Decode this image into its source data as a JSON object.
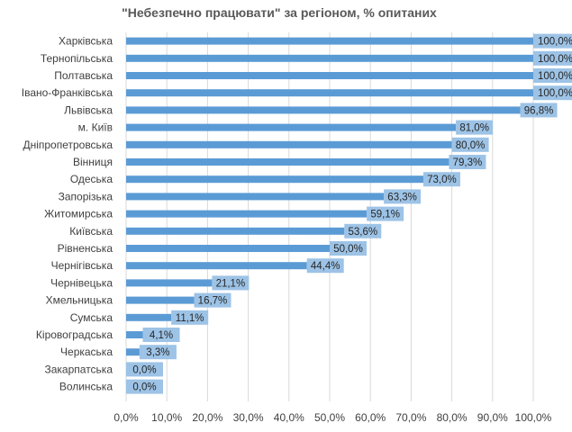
{
  "chart_data": {
    "type": "bar",
    "orientation": "horizontal",
    "title": "\"Небезпечно працювати\" за регіоном, % опитаних",
    "categories": [
      "Харківська",
      "Тернопільська",
      "Полтавська",
      "Івано-Франківська",
      "Львівська",
      "м. Київ",
      "Дніпропетровська",
      "Вінниця",
      "Одеська",
      "Запорізька",
      "Житомирська",
      "Київська",
      "Рівненська",
      "Чернігівська",
      "Чернівецька",
      "Хмельницька",
      "Сумська",
      "Кіровоградська",
      "Черкаська",
      "Закарпатська",
      "Волинська"
    ],
    "values": [
      100.0,
      100.0,
      100.0,
      100.0,
      96.8,
      81.0,
      80.0,
      79.3,
      73.0,
      63.3,
      59.1,
      53.6,
      50.0,
      44.4,
      21.1,
      16.7,
      11.1,
      4.1,
      3.3,
      0.0,
      0.0
    ],
    "value_labels": [
      "100,0%",
      "100,0%",
      "100,0%",
      "100,0%",
      "96,8%",
      "81,0%",
      "80,0%",
      "79,3%",
      "73,0%",
      "63,3%",
      "59,1%",
      "53,6%",
      "50,0%",
      "44,4%",
      "21,1%",
      "16,7%",
      "11,1%",
      "4,1%",
      "3,3%",
      "0,0%",
      "0,0%"
    ],
    "xlim": [
      0,
      100
    ],
    "x_ticks": [
      "0,0%",
      "10,0%",
      "20,0%",
      "30,0%",
      "40,0%",
      "50,0%",
      "60,0%",
      "70,0%",
      "80,0%",
      "90,0%",
      "100,0%"
    ],
    "grid": true,
    "legend": "none",
    "colors": {
      "bar": "#5b9bd5",
      "label_box": "#9dc3e6",
      "grid": "#d9d9d9"
    }
  }
}
